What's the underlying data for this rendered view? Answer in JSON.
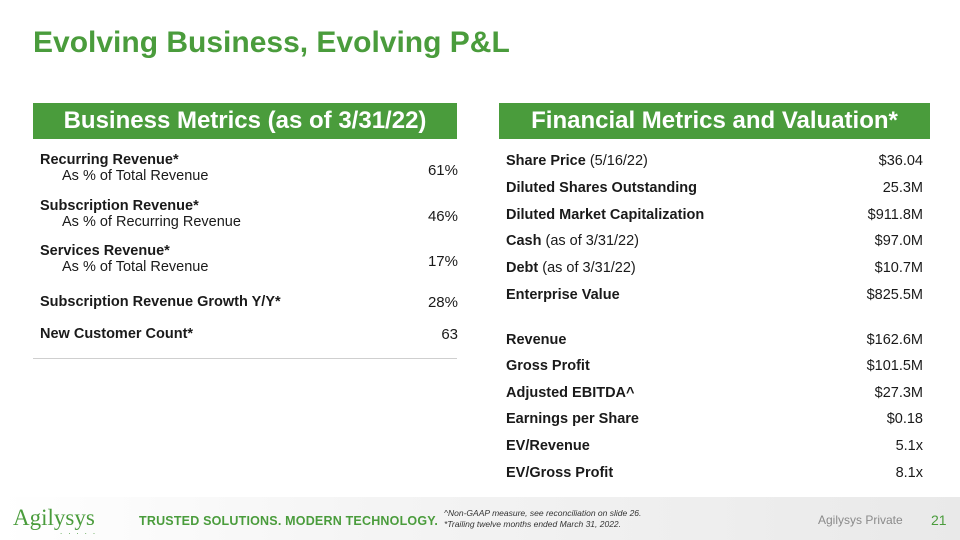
{
  "title": "Evolving Business, Evolving P&L",
  "left_panel": {
    "header": "Business Metrics (as of 3/31/22)",
    "metrics": [
      {
        "name": "Recurring Revenue*",
        "sub": "As % of Total Revenue",
        "value": "61%"
      },
      {
        "name": "Subscription Revenue*",
        "sub": "As % of Recurring Revenue",
        "value": "46%"
      },
      {
        "name": "Services Revenue*",
        "sub": "As % of Total Revenue",
        "value": "17%"
      },
      {
        "name": "Subscription Revenue Growth Y/Y*",
        "sub": "",
        "value": "28%"
      },
      {
        "name": "New Customer Count*",
        "sub": "",
        "value": "63"
      }
    ]
  },
  "right_panel": {
    "header": "Financial Metrics and Valuation*",
    "rows": [
      {
        "label": "Share Price",
        "note": " (5/16/22)",
        "value": "$36.04"
      },
      {
        "label": "Diluted Shares Outstanding",
        "note": "",
        "value": "25.3M"
      },
      {
        "label": "Diluted Market Capitalization",
        "note": "",
        "value": "$911.8M"
      },
      {
        "label": "Cash",
        "note": " (as of 3/31/22)",
        "value": "$97.0M"
      },
      {
        "label": "Debt",
        "note": " (as of 3/31/22)",
        "value": "$10.7M"
      },
      {
        "label": "Enterprise Value",
        "note": "",
        "value": "$825.5M"
      },
      {
        "label": "Revenue",
        "note": "",
        "value": "$162.6M"
      },
      {
        "label": "Gross Profit",
        "note": "",
        "value": "$101.5M"
      },
      {
        "label": "Adjusted EBITDA^",
        "note": "",
        "value": "$27.3M"
      },
      {
        "label": "Earnings per Share",
        "note": "",
        "value": "$0.18"
      },
      {
        "label": "EV/Revenue",
        "note": "",
        "value": "5.1x"
      },
      {
        "label": "EV/Gross Profit",
        "note": "",
        "value": "8.1x"
      }
    ]
  },
  "footer": {
    "logo": "Agilysys",
    "logo_dots": ".....",
    "tagline": "TRUSTED SOLUTIONS. MODERN TECHNOLOGY.",
    "notes": [
      "^Non-GAAP measure, see reconciliation on slide 26.",
      "*Trailing twelve months ended March 31, 2022."
    ],
    "private_label": "Agilysys Private",
    "page_number": "21"
  },
  "colors": {
    "accent": "#4a9c3c"
  }
}
